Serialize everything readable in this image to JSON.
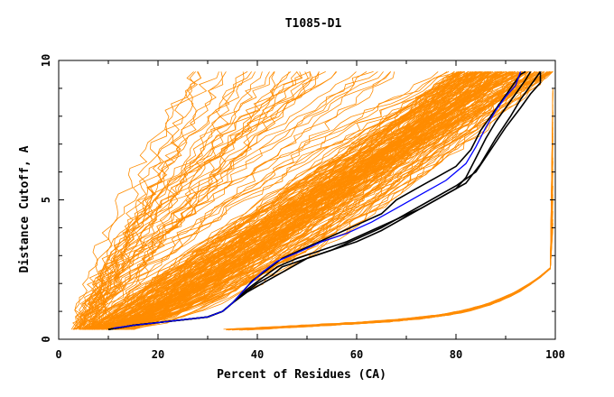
{
  "chart_data": {
    "type": "line",
    "title": "T1085-D1",
    "xlabel": "Percent of Residues (CA)",
    "ylabel": "Distance Cutoff, A",
    "xlim": [
      0,
      100
    ],
    "ylim": [
      0,
      10
    ],
    "x_ticks": [
      "0",
      "20",
      "40",
      "60",
      "80",
      "100"
    ],
    "y_ticks": [
      "0",
      "5",
      "10"
    ],
    "colors": {
      "models": "#ff8c00",
      "highlight_black": "#000000",
      "highlight_blue": "#0000ff"
    },
    "series": [
      {
        "color": "black",
        "points": [
          [
            10,
            0.35
          ],
          [
            15,
            0.5
          ],
          [
            20,
            0.6
          ],
          [
            25,
            0.7
          ],
          [
            30,
            0.8
          ],
          [
            33,
            1.0
          ],
          [
            35,
            1.3
          ],
          [
            37,
            1.6
          ],
          [
            40,
            2.0
          ],
          [
            43,
            2.3
          ],
          [
            45,
            2.6
          ],
          [
            50,
            2.9
          ],
          [
            55,
            3.2
          ],
          [
            60,
            3.5
          ],
          [
            65,
            3.9
          ],
          [
            70,
            4.4
          ],
          [
            75,
            4.9
          ],
          [
            80,
            5.4
          ],
          [
            82,
            5.8
          ],
          [
            84,
            6.5
          ],
          [
            86,
            7.2
          ],
          [
            88,
            7.8
          ],
          [
            90,
            8.3
          ],
          [
            92,
            8.8
          ],
          [
            94,
            9.3
          ],
          [
            95,
            9.6
          ]
        ]
      },
      {
        "color": "black",
        "points": [
          [
            10,
            0.35
          ],
          [
            15,
            0.5
          ],
          [
            20,
            0.6
          ],
          [
            25,
            0.7
          ],
          [
            30,
            0.8
          ],
          [
            33,
            1.0
          ],
          [
            35,
            1.3
          ],
          [
            38,
            1.8
          ],
          [
            41,
            2.2
          ],
          [
            44,
            2.6
          ],
          [
            48,
            2.9
          ],
          [
            53,
            3.2
          ],
          [
            58,
            3.5
          ],
          [
            63,
            3.9
          ],
          [
            68,
            4.3
          ],
          [
            73,
            4.7
          ],
          [
            78,
            5.2
          ],
          [
            82,
            5.6
          ],
          [
            85,
            6.3
          ],
          [
            88,
            7.2
          ],
          [
            91,
            8.0
          ],
          [
            93,
            8.6
          ],
          [
            95,
            9.1
          ],
          [
            97,
            9.6
          ]
        ]
      },
      {
        "color": "black",
        "points": [
          [
            10,
            0.35
          ],
          [
            15,
            0.5
          ],
          [
            20,
            0.6
          ],
          [
            25,
            0.7
          ],
          [
            30,
            0.8
          ],
          [
            33,
            1.0
          ],
          [
            35,
            1.3
          ],
          [
            37,
            1.7
          ],
          [
            39,
            2.1
          ],
          [
            42,
            2.5
          ],
          [
            45,
            2.9
          ],
          [
            50,
            3.3
          ],
          [
            55,
            3.7
          ],
          [
            60,
            4.1
          ],
          [
            65,
            4.5
          ],
          [
            68,
            5.0
          ],
          [
            72,
            5.4
          ],
          [
            76,
            5.8
          ],
          [
            80,
            6.2
          ],
          [
            83,
            6.8
          ],
          [
            85,
            7.5
          ],
          [
            87,
            8.0
          ],
          [
            89,
            8.5
          ],
          [
            91,
            9.0
          ],
          [
            93,
            9.5
          ],
          [
            94,
            9.6
          ]
        ]
      },
      {
        "color": "black",
        "points": [
          [
            10,
            0.35
          ],
          [
            15,
            0.5
          ],
          [
            20,
            0.6
          ],
          [
            25,
            0.7
          ],
          [
            30,
            0.8
          ],
          [
            33,
            1.0
          ],
          [
            35,
            1.3
          ],
          [
            38,
            1.7
          ],
          [
            42,
            2.1
          ],
          [
            46,
            2.5
          ],
          [
            50,
            2.9
          ],
          [
            55,
            3.2
          ],
          [
            60,
            3.6
          ],
          [
            65,
            4.0
          ],
          [
            70,
            4.5
          ],
          [
            75,
            5.0
          ],
          [
            80,
            5.5
          ],
          [
            84,
            6.0
          ],
          [
            87,
            6.8
          ],
          [
            90,
            7.6
          ],
          [
            93,
            8.3
          ],
          [
            95,
            8.8
          ],
          [
            97,
            9.2
          ],
          [
            97,
            9.6
          ]
        ]
      },
      {
        "color": "blue",
        "points": [
          [
            11,
            0.4
          ],
          [
            15,
            0.5
          ],
          [
            20,
            0.6
          ],
          [
            25,
            0.7
          ],
          [
            30,
            0.8
          ],
          [
            33,
            1.0
          ],
          [
            35,
            1.3
          ],
          [
            38,
            1.9
          ],
          [
            41,
            2.4
          ],
          [
            44,
            2.8
          ],
          [
            48,
            3.1
          ],
          [
            53,
            3.5
          ],
          [
            58,
            3.8
          ],
          [
            63,
            4.2
          ],
          [
            68,
            4.7
          ],
          [
            73,
            5.2
          ],
          [
            78,
            5.7
          ],
          [
            82,
            6.3
          ],
          [
            84,
            6.9
          ],
          [
            86,
            7.6
          ],
          [
            88,
            8.2
          ],
          [
            90,
            8.7
          ],
          [
            92,
            9.1
          ],
          [
            93,
            9.6
          ]
        ]
      }
    ]
  }
}
